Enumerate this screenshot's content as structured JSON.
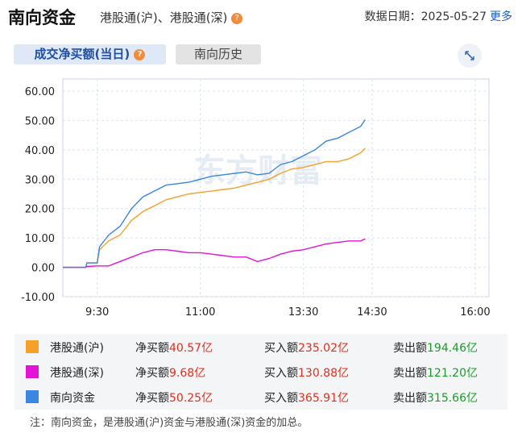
{
  "header": {
    "title": "南向资金",
    "subtitle": "港股通(沪)、港股通(深)",
    "help": "?",
    "date_label": "数据日期：",
    "date": "2025-05-27",
    "more": "更多"
  },
  "tabs": [
    "成交净买额(当日)",
    "南向历史"
  ],
  "watermark": "东方财富",
  "chart_data": {
    "type": "line",
    "x": [
      0,
      20,
      21,
      30,
      32,
      40,
      50,
      60,
      70,
      80,
      90,
      100,
      110,
      120,
      130,
      140,
      150,
      160,
      170,
      180,
      190,
      200,
      210,
      220,
      230,
      240,
      250,
      260,
      264
    ],
    "series": [
      {
        "name": "港股通(沪)",
        "color": "#f5a02a",
        "values": [
          0,
          0,
          1.5,
          1.5,
          6,
          9,
          11,
          16,
          19,
          21,
          23,
          24,
          25,
          25.5,
          26,
          26.5,
          27,
          28,
          29,
          30,
          32,
          33.5,
          34,
          35,
          36,
          36,
          37,
          39,
          40.57
        ]
      },
      {
        "name": "港股通(深)",
        "color": "#e313d6",
        "values": [
          0,
          0,
          0.3,
          0.5,
          0.5,
          0.5,
          2,
          3.5,
          5,
          6,
          6,
          5.5,
          5,
          5,
          4.5,
          4,
          3.5,
          3.5,
          2,
          3,
          4.5,
          5.5,
          6,
          7,
          8,
          8.5,
          9,
          9,
          9.68
        ]
      },
      {
        "name": "南向资金",
        "color": "#3a86e0",
        "values": [
          0,
          0,
          1.5,
          1.5,
          7,
          11,
          14,
          20,
          24,
          26,
          28,
          28.5,
          29,
          30,
          31,
          31.5,
          32,
          32.5,
          31.5,
          32,
          35,
          36,
          38,
          40,
          43,
          44,
          46,
          48,
          50.25
        ]
      }
    ],
    "xlim": [
      0,
      372
    ],
    "xticks": [
      {
        "value": 30,
        "label": "9:30"
      },
      {
        "value": 120,
        "label": "11:00"
      },
      {
        "value": 210,
        "label": "13:30"
      },
      {
        "value": 270,
        "label": "14:30"
      },
      {
        "value": 360,
        "label": "16:00"
      }
    ],
    "ylim": [
      -10,
      60
    ],
    "yticks": [
      {
        "value": 60,
        "label": "60.00"
      },
      {
        "value": 50,
        "label": "50.00"
      },
      {
        "value": 40,
        "label": "40.00"
      },
      {
        "value": 30,
        "label": "30.00"
      },
      {
        "value": 20,
        "label": "20.00"
      },
      {
        "value": 10,
        "label": "10.00"
      },
      {
        "value": 0,
        "label": "0.00"
      },
      {
        "value": -10,
        "label": "-10.00"
      }
    ],
    "grid": true
  },
  "legend": {
    "rows": [
      {
        "net_label": "净买额",
        "net": "40.57亿",
        "buy_label": "买入额",
        "buy": "235.02亿",
        "sell_label": "卖出额",
        "sell": "194.46亿"
      },
      {
        "net_label": "净买额",
        "net": "9.68亿",
        "buy_label": "买入额",
        "buy": "130.88亿",
        "sell_label": "卖出额",
        "sell": "121.20亿"
      },
      {
        "net_label": "净买额",
        "net": "50.25亿",
        "buy_label": "买入额",
        "buy": "365.91亿",
        "sell_label": "卖出额",
        "sell": "315.66亿"
      }
    ]
  },
  "note": "注：南向资金，是港股通(沪)资金与港股通(深)资金的加总。"
}
